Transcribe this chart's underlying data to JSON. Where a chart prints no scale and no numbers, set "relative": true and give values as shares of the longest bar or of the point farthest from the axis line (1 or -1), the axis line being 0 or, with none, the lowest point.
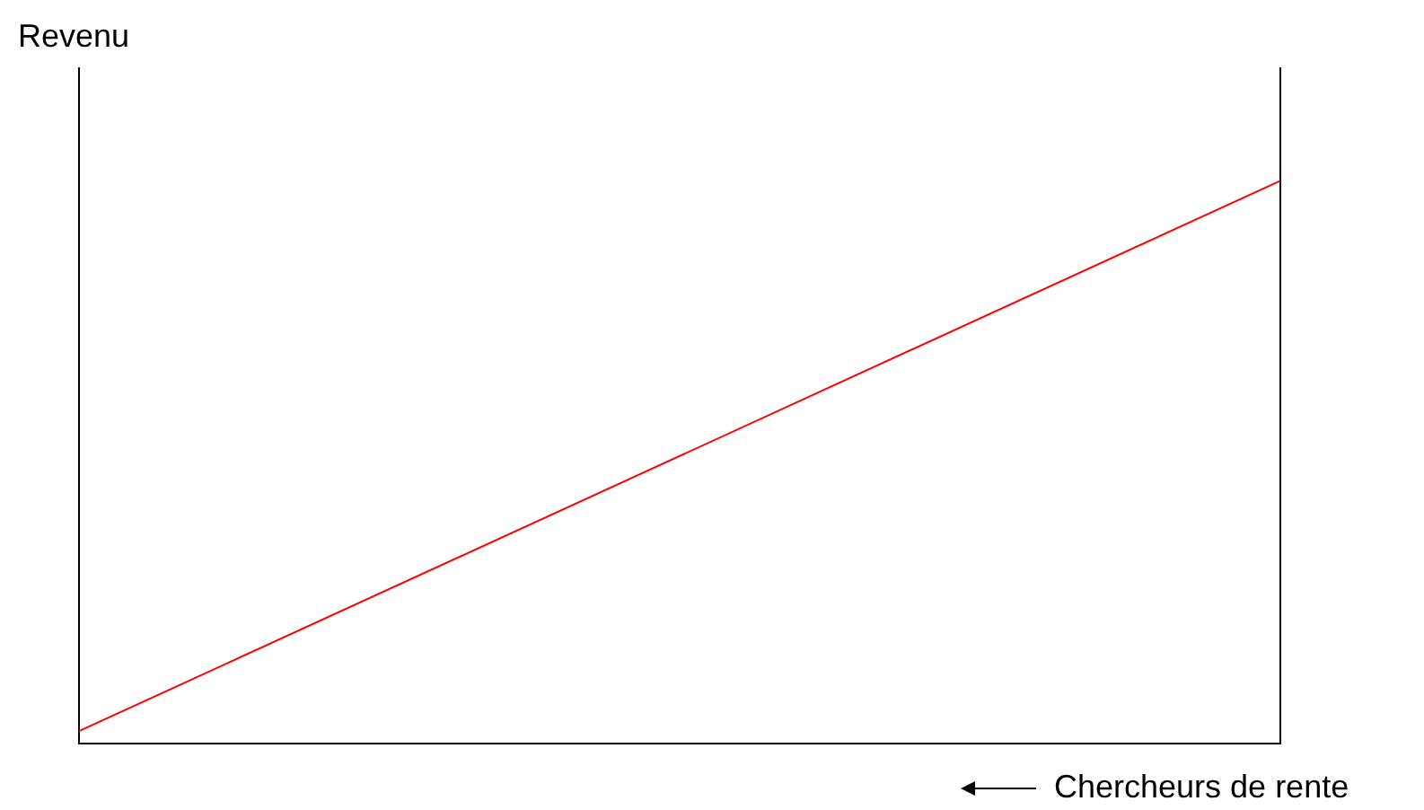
{
  "chart_data": {
    "type": "line",
    "relative": true,
    "ylabel": "Revenu",
    "xlabel": "Chercheurs de rente",
    "categories": [
      null,
      null
    ],
    "series": [
      {
        "color": "#ff0000",
        "values": [
          0.022,
          1
        ]
      }
    ],
    "grid": false,
    "legend": false,
    "marker": "none",
    "line_style": "solid",
    "tick_labels": false
  }
}
